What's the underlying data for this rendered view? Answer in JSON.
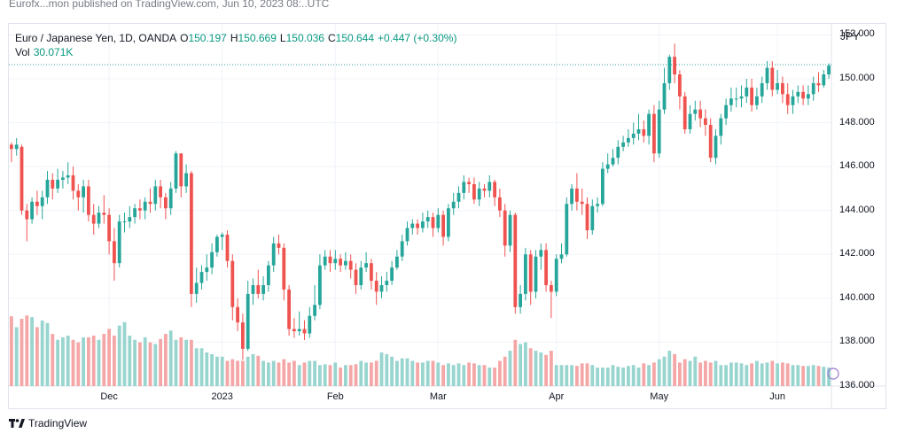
{
  "header_line": "Eurofx...mon published on TradingView.com, Jun 10, 2023 08:..UTC",
  "legend": {
    "symbol": "Euro / Japanese Yen, 1D, OANDA",
    "o_label": "O",
    "o_value": "150.197",
    "h_label": "H",
    "h_value": "150.669",
    "l_label": "L",
    "l_value": "150.036",
    "c_label": "C",
    "c_value": "150.644",
    "change": "+0.447 (+0.30%)",
    "vol_label": "Vol",
    "vol_value": "30.071K"
  },
  "footer": {
    "brand": "TradingView"
  },
  "colors": {
    "up": "#26a69a",
    "down": "#ef5350",
    "up_vol": "#99d5cf",
    "down_vol": "#f5a6a6",
    "grid": "#f0f3fa",
    "price_line": "#26a69a"
  },
  "chart_data": {
    "type": "candlestick",
    "currency": "JPY",
    "ylim": [
      136,
      152.5
    ],
    "y_ticks": [
      {
        "value": 152,
        "label": "152.000"
      },
      {
        "value": 150,
        "label": "150.000"
      },
      {
        "value": 148,
        "label": "148.000"
      },
      {
        "value": 146,
        "label": "146.000"
      },
      {
        "value": 144,
        "label": "144.000"
      },
      {
        "value": 142,
        "label": "142.000"
      },
      {
        "value": 140,
        "label": "140.000"
      },
      {
        "value": 138,
        "label": "138.000"
      },
      {
        "value": 136,
        "label": "136.000"
      }
    ],
    "x_ticks": [
      {
        "index": 19,
        "label": "Dec"
      },
      {
        "index": 41,
        "label": "2023"
      },
      {
        "index": 63,
        "label": "Feb"
      },
      {
        "index": 83,
        "label": "Mar"
      },
      {
        "index": 106,
        "label": "Apr"
      },
      {
        "index": 126,
        "label": "May"
      },
      {
        "index": 149,
        "label": "Jun"
      }
    ],
    "last_price": 150.644,
    "candles": [
      [
        147.0,
        146.8,
        147.1,
        146.2,
        0.83
      ],
      [
        146.8,
        147.0,
        147.3,
        146.5,
        0.7
      ],
      [
        146.9,
        144.0,
        147.0,
        143.8,
        0.8
      ],
      [
        144.0,
        143.6,
        144.3,
        142.6,
        0.84
      ],
      [
        143.6,
        144.4,
        144.6,
        143.4,
        0.82
      ],
      [
        144.4,
        144.2,
        144.9,
        143.8,
        0.7
      ],
      [
        144.2,
        144.6,
        144.9,
        143.6,
        0.78
      ],
      [
        144.6,
        145.4,
        145.8,
        144.3,
        0.75
      ],
      [
        145.4,
        145.0,
        145.7,
        144.5,
        0.62
      ],
      [
        145.0,
        145.4,
        145.9,
        144.8,
        0.55
      ],
      [
        145.4,
        145.5,
        145.8,
        145.0,
        0.58
      ],
      [
        145.5,
        145.6,
        146.2,
        145.2,
        0.6
      ],
      [
        145.6,
        144.9,
        146.0,
        144.5,
        0.55
      ],
      [
        144.9,
        144.6,
        145.2,
        144.0,
        0.52
      ],
      [
        144.6,
        145.1,
        145.4,
        143.9,
        0.58
      ],
      [
        145.1,
        143.8,
        145.4,
        143.5,
        0.58
      ],
      [
        143.8,
        143.4,
        144.3,
        142.9,
        0.6
      ],
      [
        143.4,
        143.9,
        144.2,
        143.2,
        0.55
      ],
      [
        143.9,
        143.8,
        144.7,
        143.4,
        0.62
      ],
      [
        143.8,
        142.6,
        144.1,
        142.0,
        0.68
      ],
      [
        142.6,
        141.6,
        143.2,
        140.8,
        0.6
      ],
      [
        141.6,
        143.5,
        143.8,
        141.4,
        0.72
      ],
      [
        143.5,
        143.5,
        143.9,
        143.0,
        0.76
      ],
      [
        143.5,
        143.7,
        144.2,
        143.2,
        0.6
      ],
      [
        143.7,
        144.1,
        144.3,
        143.4,
        0.55
      ],
      [
        144.1,
        144.0,
        144.5,
        143.6,
        0.52
      ],
      [
        144.0,
        144.4,
        144.6,
        143.6,
        0.58
      ],
      [
        144.4,
        144.3,
        145.0,
        143.9,
        0.52
      ],
      [
        144.3,
        145.1,
        145.4,
        144.0,
        0.5
      ],
      [
        145.1,
        144.6,
        145.4,
        144.1,
        0.56
      ],
      [
        144.6,
        144.1,
        144.8,
        143.6,
        0.62
      ],
      [
        144.1,
        145.0,
        145.3,
        143.8,
        0.66
      ],
      [
        145.0,
        146.6,
        146.7,
        144.8,
        0.55
      ],
      [
        146.6,
        145.1,
        146.5,
        144.6,
        0.58
      ],
      [
        145.1,
        145.7,
        146.1,
        144.8,
        0.55
      ],
      [
        145.7,
        140.2,
        145.8,
        139.6,
        0.55
      ],
      [
        140.2,
        140.7,
        141.4,
        139.8,
        0.45
      ],
      [
        140.7,
        141.2,
        141.5,
        140.4,
        0.45
      ],
      [
        141.2,
        141.4,
        142.0,
        140.8,
        0.4
      ],
      [
        141.4,
        142.1,
        142.5,
        141.1,
        0.38
      ],
      [
        142.1,
        142.8,
        142.9,
        141.9,
        0.35
      ],
      [
        142.8,
        142.9,
        143.0,
        142.2,
        0.35
      ],
      [
        142.9,
        141.7,
        143.1,
        141.4,
        0.3
      ],
      [
        141.7,
        139.6,
        142.0,
        139.0,
        0.32
      ],
      [
        139.6,
        138.9,
        140.0,
        138.5,
        0.3
      ],
      [
        138.9,
        137.7,
        139.3,
        137.2,
        0.3
      ],
      [
        137.7,
        140.2,
        140.8,
        137.6,
        0.35
      ],
      [
        140.2,
        140.6,
        140.9,
        139.7,
        0.38
      ],
      [
        140.6,
        140.2,
        141.3,
        140.0,
        0.36
      ],
      [
        140.2,
        140.6,
        141.0,
        139.9,
        0.3
      ],
      [
        140.6,
        141.5,
        141.7,
        140.3,
        0.28
      ],
      [
        141.5,
        142.5,
        142.8,
        141.2,
        0.3
      ],
      [
        142.5,
        142.3,
        142.9,
        142.0,
        0.28
      ],
      [
        142.3,
        140.4,
        142.5,
        139.9,
        0.32
      ],
      [
        140.4,
        138.6,
        140.6,
        138.3,
        0.28
      ],
      [
        138.6,
        138.5,
        139.1,
        138.2,
        0.3
      ],
      [
        138.5,
        138.6,
        139.4,
        138.3,
        0.25
      ],
      [
        138.6,
        138.4,
        139.0,
        138.1,
        0.28
      ],
      [
        138.4,
        139.2,
        139.6,
        138.2,
        0.3
      ],
      [
        139.2,
        139.7,
        140.6,
        139.0,
        0.3
      ],
      [
        139.7,
        141.5,
        142.0,
        139.5,
        0.25
      ],
      [
        141.5,
        141.9,
        142.2,
        141.3,
        0.26
      ],
      [
        141.9,
        141.6,
        142.2,
        141.2,
        0.25
      ],
      [
        141.6,
        141.8,
        142.2,
        141.3,
        0.28
      ],
      [
        141.8,
        141.5,
        142.0,
        141.2,
        0.22
      ],
      [
        141.5,
        141.7,
        142.1,
        141.3,
        0.25
      ],
      [
        141.7,
        141.3,
        142.0,
        140.9,
        0.25
      ],
      [
        141.3,
        140.6,
        141.6,
        140.2,
        0.26
      ],
      [
        140.6,
        141.4,
        141.7,
        140.4,
        0.3
      ],
      [
        141.4,
        141.6,
        142.1,
        141.2,
        0.28
      ],
      [
        141.6,
        140.8,
        141.8,
        140.4,
        0.28
      ],
      [
        140.8,
        140.3,
        141.2,
        139.7,
        0.3
      ],
      [
        140.3,
        140.6,
        141.0,
        140.0,
        0.4
      ],
      [
        140.6,
        140.8,
        141.2,
        140.3,
        0.38
      ],
      [
        140.8,
        141.4,
        141.7,
        140.6,
        0.35
      ],
      [
        141.4,
        141.9,
        142.2,
        141.3,
        0.3
      ],
      [
        141.9,
        142.6,
        142.9,
        141.7,
        0.33
      ],
      [
        142.6,
        143.2,
        143.5,
        142.4,
        0.33
      ],
      [
        143.2,
        143.4,
        143.6,
        142.9,
        0.3
      ],
      [
        143.4,
        143.2,
        143.6,
        142.9,
        0.28
      ],
      [
        143.2,
        143.5,
        143.9,
        143.0,
        0.28
      ],
      [
        143.5,
        143.7,
        144.0,
        143.2,
        0.3
      ],
      [
        143.7,
        143.2,
        143.9,
        142.8,
        0.3
      ],
      [
        143.2,
        143.8,
        144.1,
        143.0,
        0.28
      ],
      [
        143.8,
        142.8,
        144.0,
        142.4,
        0.25
      ],
      [
        142.8,
        144.1,
        144.3,
        142.6,
        0.27
      ],
      [
        144.1,
        144.4,
        144.8,
        143.8,
        0.25
      ],
      [
        144.4,
        144.8,
        145.1,
        144.1,
        0.27
      ],
      [
        144.8,
        145.3,
        145.6,
        144.5,
        0.25
      ],
      [
        145.3,
        145.2,
        145.5,
        144.8,
        0.28
      ],
      [
        145.2,
        144.5,
        145.5,
        144.3,
        0.27
      ],
      [
        144.5,
        145.0,
        145.3,
        144.2,
        0.25
      ],
      [
        145.0,
        144.9,
        145.2,
        144.6,
        0.25
      ],
      [
        144.9,
        145.3,
        145.6,
        144.6,
        0.22
      ],
      [
        145.3,
        144.6,
        145.4,
        144.2,
        0.22
      ],
      [
        144.6,
        144.0,
        145.0,
        143.7,
        0.3
      ],
      [
        144.0,
        142.4,
        144.3,
        141.9,
        0.35
      ],
      [
        142.4,
        143.8,
        144.0,
        142.1,
        0.42
      ],
      [
        143.8,
        139.6,
        143.9,
        139.3,
        0.55
      ],
      [
        139.6,
        140.2,
        140.6,
        139.3,
        0.5
      ],
      [
        140.2,
        142.0,
        142.3,
        139.9,
        0.52
      ],
      [
        142.0,
        140.3,
        142.2,
        139.7,
        0.45
      ],
      [
        140.3,
        141.9,
        142.2,
        140.0,
        0.42
      ],
      [
        141.9,
        142.2,
        142.5,
        141.3,
        0.4
      ],
      [
        142.2,
        140.6,
        142.5,
        140.3,
        0.37
      ],
      [
        140.6,
        140.3,
        140.8,
        139.1,
        0.42
      ],
      [
        140.3,
        141.8,
        142.0,
        140.1,
        0.25
      ],
      [
        141.8,
        142.0,
        142.5,
        141.6,
        0.25
      ],
      [
        142.0,
        144.3,
        144.6,
        141.9,
        0.25
      ],
      [
        144.3,
        145.0,
        145.2,
        144.0,
        0.25
      ],
      [
        145.0,
        144.4,
        145.7,
        144.0,
        0.24
      ],
      [
        144.4,
        144.3,
        145.0,
        143.8,
        0.27
      ],
      [
        144.3,
        143.1,
        144.6,
        142.7,
        0.27
      ],
      [
        143.1,
        144.2,
        144.5,
        142.9,
        0.25
      ],
      [
        144.2,
        144.3,
        144.6,
        143.9,
        0.22
      ],
      [
        144.3,
        145.9,
        146.2,
        144.2,
        0.22
      ],
      [
        145.9,
        146.1,
        146.6,
        145.7,
        0.22
      ],
      [
        146.1,
        146.4,
        146.8,
        146.0,
        0.25
      ],
      [
        146.4,
        146.9,
        147.2,
        146.1,
        0.23
      ],
      [
        146.9,
        147.1,
        147.4,
        146.7,
        0.22
      ],
      [
        147.1,
        147.3,
        147.7,
        146.9,
        0.24
      ],
      [
        147.3,
        147.5,
        148.0,
        147.0,
        0.25
      ],
      [
        147.5,
        147.7,
        148.4,
        147.2,
        0.22
      ],
      [
        147.7,
        147.4,
        148.1,
        147.1,
        0.27
      ],
      [
        147.4,
        148.4,
        148.6,
        147.0,
        0.25
      ],
      [
        148.4,
        146.6,
        148.8,
        146.2,
        0.28
      ],
      [
        146.6,
        148.6,
        149.0,
        146.4,
        0.32
      ],
      [
        148.6,
        149.8,
        150.5,
        148.4,
        0.35
      ],
      [
        149.8,
        151.0,
        151.1,
        149.5,
        0.42
      ],
      [
        151.0,
        150.2,
        151.6,
        149.8,
        0.38
      ],
      [
        150.2,
        149.2,
        150.4,
        148.6,
        0.28
      ],
      [
        149.2,
        147.7,
        149.4,
        147.5,
        0.32
      ],
      [
        147.7,
        148.4,
        148.8,
        147.5,
        0.3
      ],
      [
        148.4,
        148.6,
        149.0,
        148.1,
        0.35
      ],
      [
        148.6,
        148.2,
        149.0,
        147.8,
        0.28
      ],
      [
        148.2,
        147.9,
        148.6,
        147.4,
        0.3
      ],
      [
        147.9,
        146.4,
        148.2,
        146.2,
        0.28
      ],
      [
        146.4,
        147.4,
        147.7,
        146.1,
        0.3
      ],
      [
        147.4,
        148.2,
        148.4,
        147.0,
        0.25
      ],
      [
        148.2,
        148.8,
        149.1,
        147.9,
        0.25
      ],
      [
        148.8,
        149.1,
        149.6,
        148.5,
        0.28
      ],
      [
        149.1,
        149.1,
        149.6,
        148.7,
        0.28
      ],
      [
        149.1,
        149.2,
        149.7,
        148.7,
        0.27
      ],
      [
        149.2,
        149.6,
        150.0,
        148.9,
        0.25
      ],
      [
        149.6,
        148.8,
        150.0,
        148.5,
        0.27
      ],
      [
        148.8,
        149.2,
        149.6,
        148.6,
        0.3
      ],
      [
        149.2,
        149.8,
        150.1,
        148.9,
        0.27
      ],
      [
        149.8,
        150.5,
        150.8,
        149.5,
        0.28
      ],
      [
        150.5,
        149.5,
        150.8,
        149.2,
        0.3
      ],
      [
        149.5,
        149.8,
        150.4,
        149.3,
        0.27
      ],
      [
        149.8,
        149.3,
        150.1,
        148.9,
        0.28
      ],
      [
        149.3,
        148.8,
        149.8,
        148.4,
        0.27
      ],
      [
        148.8,
        149.2,
        149.5,
        148.4,
        0.25
      ],
      [
        149.2,
        149.4,
        149.7,
        148.9,
        0.25
      ],
      [
        149.4,
        149.1,
        149.7,
        148.8,
        0.24
      ],
      [
        149.1,
        149.3,
        149.7,
        148.8,
        0.24
      ],
      [
        149.3,
        149.8,
        150.1,
        149.0,
        0.25
      ],
      [
        149.8,
        149.7,
        150.3,
        149.4,
        0.24
      ],
      [
        149.7,
        150.2,
        150.4,
        149.6,
        0.23
      ],
      [
        150.2,
        150.6,
        150.7,
        150.0,
        0.22
      ]
    ]
  }
}
